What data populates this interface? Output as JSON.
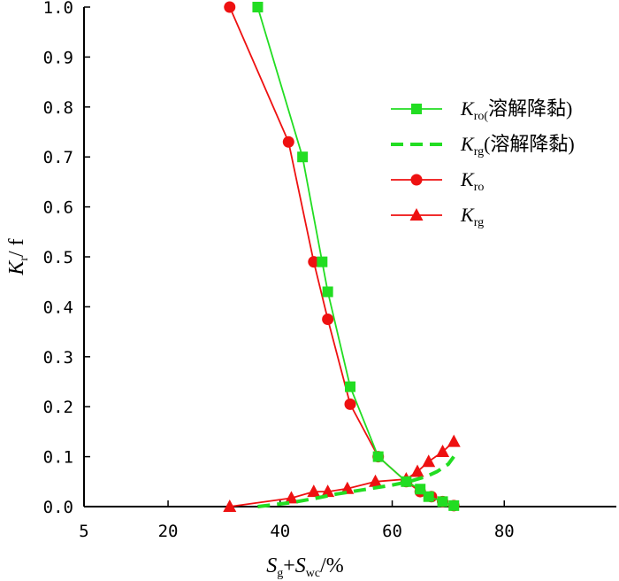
{
  "chart_data": {
    "type": "line",
    "title": "",
    "xlabel": {
      "main1": "S",
      "sub1": "g",
      "plus": "+",
      "main2": "S",
      "sub2": "wc",
      "unit": "/%"
    },
    "ylabel": {
      "main": "K",
      "sub": "r",
      "unit": "/ f"
    },
    "xlim": [
      5,
      100
    ],
    "ylim": [
      0,
      1.0
    ],
    "x_ticks": [
      5,
      20,
      40,
      60,
      80
    ],
    "x_tick_labels": [
      "5",
      "20",
      "40",
      "60",
      "80"
    ],
    "y_ticks": [
      0,
      0.1,
      0.2,
      0.3,
      0.4,
      0.5,
      0.6,
      0.7,
      0.8,
      0.9,
      1.0
    ],
    "y_tick_labels": [
      "0.0",
      "0.1",
      "0.2",
      "0.3",
      "0.4",
      "0.5",
      "0.6",
      "0.7",
      "0.8",
      "0.9",
      "1.0"
    ],
    "grid": false,
    "legend_position": "right",
    "series": [
      {
        "name": "Kro(溶解降黏)",
        "legend": {
          "main": "K",
          "sub": "ro(",
          "rest": "溶解降黏)"
        },
        "color": "#22dd22",
        "marker": "square",
        "line": "solid",
        "x": [
          36,
          44,
          47.5,
          48.5,
          52.5,
          57.5,
          62.5,
          65,
          66.5,
          69,
          71
        ],
        "y": [
          1.0,
          0.7,
          0.49,
          0.43,
          0.24,
          0.1,
          0.05,
          0.035,
          0.02,
          0.01,
          0.002
        ]
      },
      {
        "name": "Krg(溶解降黏)",
        "legend": {
          "main": "K",
          "sub": "rg",
          "rest": "(溶解降黏)"
        },
        "color": "#22dd22",
        "marker": "none",
        "line": "dashed",
        "x": [
          36,
          42,
          46,
          50,
          55,
          60,
          63,
          66,
          68,
          70,
          71
        ],
        "y": [
          0.0,
          0.008,
          0.016,
          0.025,
          0.034,
          0.043,
          0.05,
          0.06,
          0.07,
          0.085,
          0.1
        ]
      },
      {
        "name": "Kro",
        "legend": {
          "main": "K",
          "sub": "ro",
          "rest": ""
        },
        "color": "#ee1111",
        "marker": "circle",
        "line": "solid",
        "x": [
          31,
          41.5,
          46,
          48.5,
          52.5,
          57.5,
          62.5,
          65,
          67,
          69,
          71
        ],
        "y": [
          1.0,
          0.73,
          0.49,
          0.375,
          0.205,
          0.1,
          0.05,
          0.03,
          0.02,
          0.01,
          0.002
        ]
      },
      {
        "name": "Krg",
        "legend": {
          "main": "K",
          "sub": "rg",
          "rest": ""
        },
        "color": "#ee1111",
        "marker": "triangle",
        "line": "solid",
        "x": [
          31,
          42,
          46,
          48.5,
          52,
          57,
          62.5,
          64.5,
          66.5,
          69,
          71
        ],
        "y": [
          0.0,
          0.017,
          0.03,
          0.03,
          0.036,
          0.05,
          0.055,
          0.07,
          0.09,
          0.11,
          0.13
        ]
      }
    ]
  }
}
